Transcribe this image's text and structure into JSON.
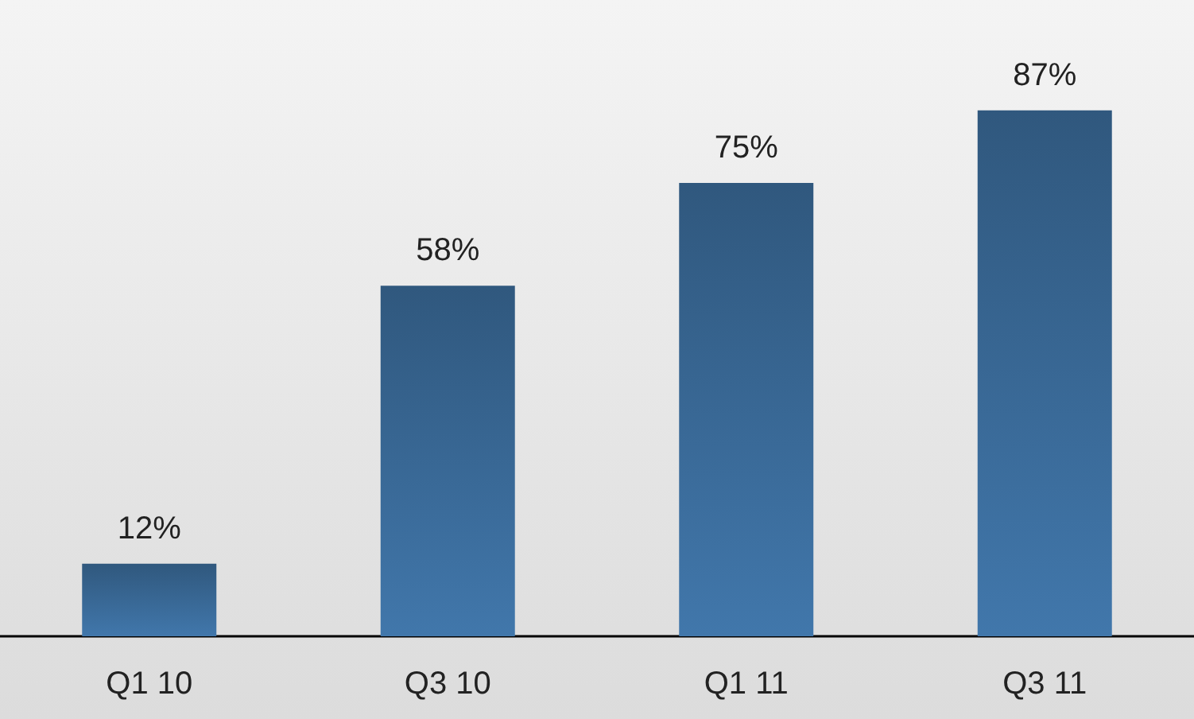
{
  "chart_data": {
    "type": "bar",
    "categories": [
      "Q1 10",
      "Q3 10",
      "Q1 11",
      "Q3 11"
    ],
    "values": [
      12,
      58,
      75,
      87
    ],
    "value_labels": [
      "12%",
      "58%",
      "75%",
      "87%"
    ],
    "color": "#3c6e9e"
  }
}
